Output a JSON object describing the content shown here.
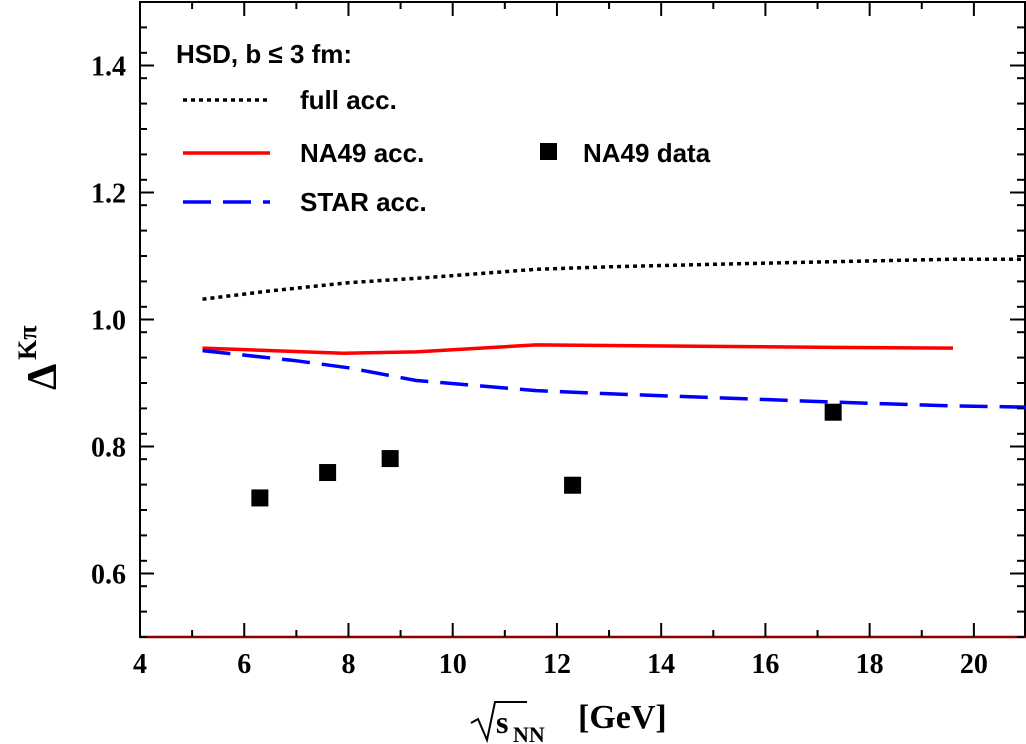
{
  "chart_data": {
    "type": "line",
    "xlim": [
      4,
      21
    ],
    "ylim": [
      0.5,
      1.5
    ],
    "x_ticks": [
      4,
      6,
      8,
      10,
      12,
      14,
      16,
      18,
      20
    ],
    "x_tick_labels": [
      "4",
      "6",
      "8",
      "10",
      "12",
      "14",
      "16",
      "18",
      "20"
    ],
    "y_ticks": [
      0.6,
      0.8,
      1.0,
      1.2,
      1.4
    ],
    "y_tick_labels": [
      "0.6",
      "0.8",
      "1.0",
      "1.2",
      "1.4"
    ],
    "xlabel": {
      "sqrt_symbol": "√",
      "var": "s",
      "sub": "NN",
      "unit": "[GeV]"
    },
    "ylabel": {
      "symbol": "Δ",
      "sup": "Kπ"
    },
    "legend_title": "HSD, b ≤ 3 fm:",
    "series": [
      {
        "name": "full acc.",
        "style": "dotted",
        "color": "#000000",
        "x": [
          5.2,
          6.5,
          8.0,
          9.5,
          11.6,
          13.0,
          15.0,
          17.3,
          19.6,
          21.0
        ],
        "y": [
          1.032,
          1.045,
          1.058,
          1.066,
          1.079,
          1.083,
          1.087,
          1.091,
          1.095,
          1.095
        ]
      },
      {
        "name": "NA49 acc.",
        "style": "solid",
        "color": "#ff0000",
        "x": [
          5.2,
          7.9,
          9.3,
          11.6,
          17.3,
          19.6
        ],
        "y": [
          0.955,
          0.947,
          0.949,
          0.96,
          0.956,
          0.955
        ]
      },
      {
        "name": "STAR acc.",
        "style": "dashed",
        "color": "#0000ff",
        "x": [
          5.2,
          7.0,
          8.0,
          9.3,
          11.6,
          13.0,
          15.0,
          17.3,
          19.6,
          21.0
        ],
        "y": [
          0.951,
          0.935,
          0.924,
          0.904,
          0.888,
          0.883,
          0.877,
          0.87,
          0.864,
          0.862
        ]
      },
      {
        "name": "NA49 data",
        "style": "markers",
        "marker": "square",
        "color": "#000000",
        "x": [
          6.3,
          7.6,
          8.8,
          12.3,
          17.3
        ],
        "y": [
          0.719,
          0.759,
          0.781,
          0.739,
          0.854
        ]
      }
    ]
  }
}
